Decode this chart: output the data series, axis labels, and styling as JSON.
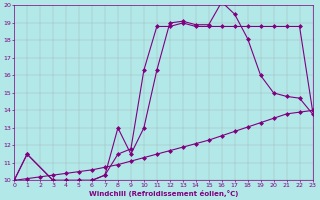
{
  "xlabel": "Windchill (Refroidissement éolien,°C)",
  "background_color": "#b2e8e8",
  "grid_color": "#a0a0a0",
  "line_color": "#800080",
  "marker": "D",
  "markersize": 2,
  "linewidth": 0.8,
  "xlim": [
    0,
    23
  ],
  "ylim": [
    10,
    20
  ],
  "xticks": [
    0,
    1,
    2,
    3,
    4,
    5,
    6,
    7,
    8,
    9,
    10,
    11,
    12,
    13,
    14,
    15,
    16,
    17,
    18,
    19,
    20,
    21,
    22,
    23
  ],
  "yticks": [
    10,
    11,
    12,
    13,
    14,
    15,
    16,
    17,
    18,
    19,
    20
  ],
  "line1_x": [
    0,
    1,
    3,
    4,
    5,
    6,
    7,
    8,
    9,
    10,
    11,
    12,
    13,
    14,
    15,
    16,
    17,
    18,
    19,
    20,
    21,
    22,
    23
  ],
  "line1_y": [
    10,
    11.5,
    10,
    10,
    10,
    10,
    10.3,
    11.5,
    11.8,
    16.3,
    18.8,
    18.8,
    19.0,
    18.8,
    18.8,
    18.8,
    18.8,
    18.8,
    18.8,
    18.8,
    18.8,
    18.8,
    14.0
  ],
  "line2_x": [
    0,
    1,
    3,
    4,
    5,
    6,
    7,
    8,
    9,
    10,
    11,
    12,
    13,
    14,
    15,
    16,
    17,
    18,
    19,
    20,
    21,
    22,
    23
  ],
  "line2_y": [
    10,
    11.5,
    10,
    10,
    10,
    10,
    10.3,
    13.0,
    11.5,
    13.0,
    16.3,
    19.0,
    19.1,
    18.9,
    18.9,
    20.2,
    19.5,
    18.1,
    16.0,
    15.0,
    14.8,
    14.7,
    13.8
  ],
  "line3_x": [
    0,
    1,
    2,
    3,
    4,
    5,
    6,
    7,
    8,
    9,
    10,
    11,
    12,
    13,
    14,
    15,
    16,
    17,
    18,
    19,
    20,
    21,
    22,
    23
  ],
  "line3_y": [
    10,
    10.1,
    10.2,
    10.3,
    10.4,
    10.5,
    10.6,
    10.75,
    10.9,
    11.1,
    11.3,
    11.5,
    11.7,
    11.9,
    12.1,
    12.3,
    12.55,
    12.8,
    13.05,
    13.3,
    13.55,
    13.8,
    13.9,
    14.0
  ]
}
